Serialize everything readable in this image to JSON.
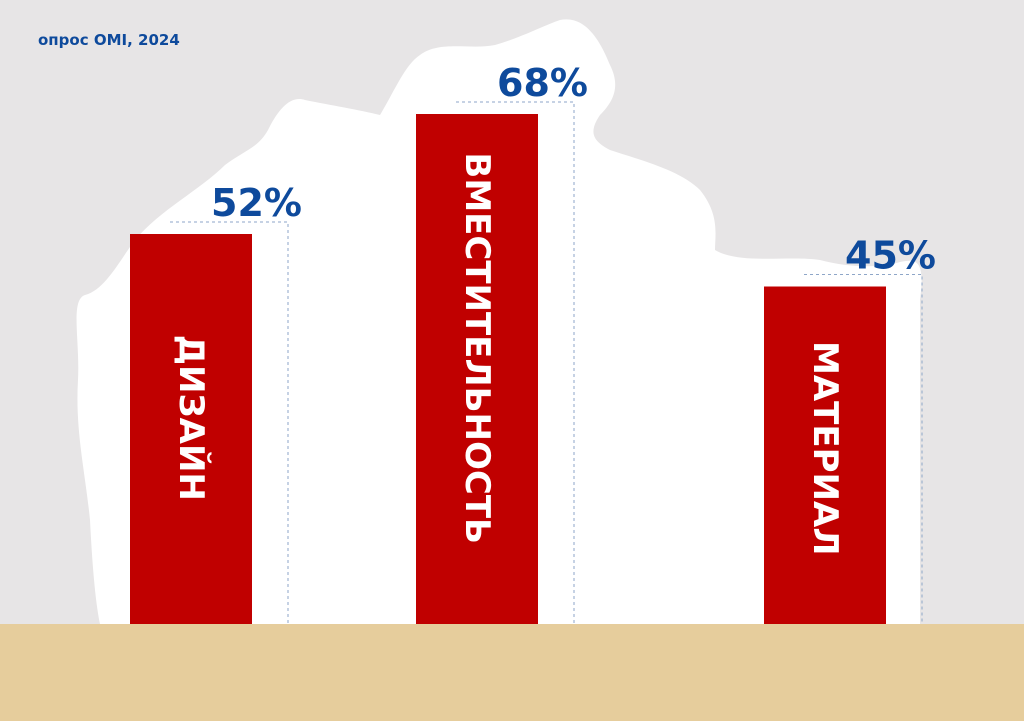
{
  "source_label": "опрос OMI, 2024",
  "chart_data": {
    "type": "bar",
    "title": "",
    "xlabel": "",
    "ylabel": "",
    "categories": [
      "ДИЗАЙН",
      "ВМЕСТИТЕЛЬНОСТЬ",
      "МАТЕРИАЛ"
    ],
    "values": [
      52,
      68,
      45
    ],
    "value_labels": [
      "52%",
      "68%",
      "45%"
    ],
    "unit": "%",
    "grid": false,
    "colors": {
      "bar": "#c00000",
      "label": "#0e4a9c",
      "bar_text": "#ffffff",
      "background": "#e7e5e6",
      "floor": "#e6cd9c",
      "blob": "#ffffff"
    }
  }
}
